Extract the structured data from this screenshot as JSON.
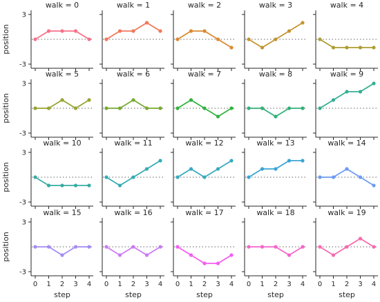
{
  "chart_data": {
    "type": "line",
    "title_prefix": "walk = ",
    "xlabel": "step",
    "ylabel": "position",
    "x": [
      0,
      1,
      2,
      3,
      4
    ],
    "x_ticks": [
      "0",
      "1",
      "2",
      "3",
      "4"
    ],
    "y_ticks": [
      "-3",
      "3"
    ],
    "ylim": [
      -3.5,
      3.5
    ],
    "reference_line": 0,
    "grid": false,
    "layout": {
      "cols": 5,
      "rows": 4
    },
    "series": [
      {
        "walk": 0,
        "title": "walk = 0",
        "color": "#f77189",
        "values": [
          0,
          1,
          1,
          1,
          0
        ]
      },
      {
        "walk": 1,
        "title": "walk = 1",
        "color": "#f2775a",
        "values": [
          0,
          1,
          1,
          2,
          1
        ]
      },
      {
        "walk": 2,
        "title": "walk = 2",
        "color": "#dc8932",
        "values": [
          0,
          1,
          1,
          0,
          -1
        ]
      },
      {
        "walk": 3,
        "title": "walk = 3",
        "color": "#c39532",
        "values": [
          0,
          -1,
          0,
          1,
          2
        ]
      },
      {
        "walk": 4,
        "title": "walk = 4",
        "color": "#ae9d31",
        "values": [
          0,
          -1,
          -1,
          -1,
          -1
        ]
      },
      {
        "walk": 5,
        "title": "walk = 5",
        "color": "#97a431",
        "values": [
          0,
          0,
          1,
          0,
          1
        ]
      },
      {
        "walk": 6,
        "title": "walk = 6",
        "color": "#77ab31",
        "values": [
          0,
          0,
          1,
          0,
          0
        ]
      },
      {
        "walk": 7,
        "title": "walk = 7",
        "color": "#31b33e",
        "values": [
          0,
          1,
          0,
          -1,
          0
        ]
      },
      {
        "walk": 8,
        "title": "walk = 8",
        "color": "#33b07a",
        "values": [
          0,
          0,
          -1,
          0,
          0
        ]
      },
      {
        "walk": 9,
        "title": "walk = 9",
        "color": "#35ae93",
        "values": [
          0,
          1,
          2,
          2,
          3
        ]
      },
      {
        "walk": 10,
        "title": "walk = 10",
        "color": "#36ada4",
        "values": [
          0,
          -1,
          -1,
          -1,
          -1
        ]
      },
      {
        "walk": 11,
        "title": "walk = 11",
        "color": "#37abb4",
        "values": [
          0,
          -1,
          0,
          1,
          2
        ]
      },
      {
        "walk": 12,
        "title": "walk = 12",
        "color": "#38aabf",
        "values": [
          0,
          1,
          0,
          1,
          2
        ]
      },
      {
        "walk": 13,
        "title": "walk = 13",
        "color": "#3aa5d3",
        "values": [
          0,
          1,
          1,
          2,
          2
        ]
      },
      {
        "walk": 14,
        "title": "walk = 14",
        "color": "#6e9bf4",
        "values": [
          0,
          0,
          1,
          0,
          -1
        ]
      },
      {
        "walk": 15,
        "title": "walk = 15",
        "color": "#a48cf4",
        "values": [
          0,
          0,
          -1,
          0,
          0
        ]
      },
      {
        "walk": 16,
        "title": "walk = 16",
        "color": "#cc7af4",
        "values": [
          0,
          -1,
          0,
          -1,
          0
        ]
      },
      {
        "walk": 17,
        "title": "walk = 17",
        "color": "#f45cf2",
        "values": [
          0,
          -1,
          -2,
          -2,
          -1
        ]
      },
      {
        "walk": 18,
        "title": "walk = 18",
        "color": "#f565cc",
        "values": [
          0,
          0,
          0,
          -1,
          0
        ]
      },
      {
        "walk": 19,
        "title": "walk = 19",
        "color": "#f66bad",
        "values": [
          0,
          -1,
          0,
          1,
          0
        ]
      }
    ]
  }
}
